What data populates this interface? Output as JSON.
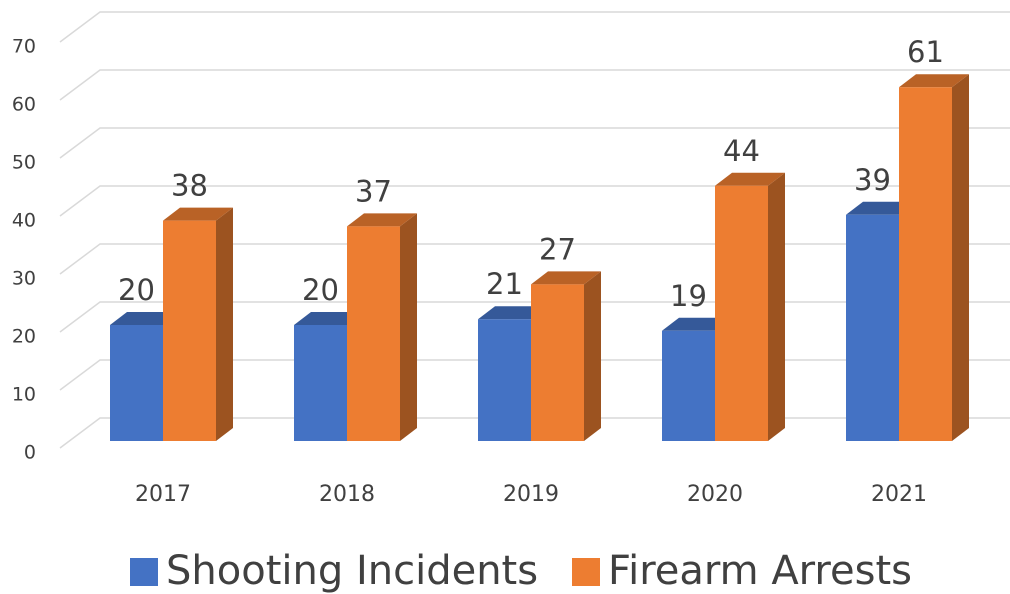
{
  "chart_data": {
    "type": "bar3d",
    "categories": [
      "2017",
      "2018",
      "2019",
      "2020",
      "2021"
    ],
    "series": [
      {
        "name": "Shooting Incidents",
        "color": "#4472c4",
        "values": [
          20,
          20,
          21,
          19,
          39
        ]
      },
      {
        "name": "Firearm Arrests",
        "color": "#ed7d31",
        "values": [
          38,
          37,
          27,
          44,
          61
        ]
      }
    ],
    "ylim": [
      0,
      70
    ],
    "yticks": [
      0,
      10,
      20,
      30,
      40,
      50,
      60,
      70
    ],
    "grid": true,
    "legend": "bottom",
    "data_labels": true
  }
}
